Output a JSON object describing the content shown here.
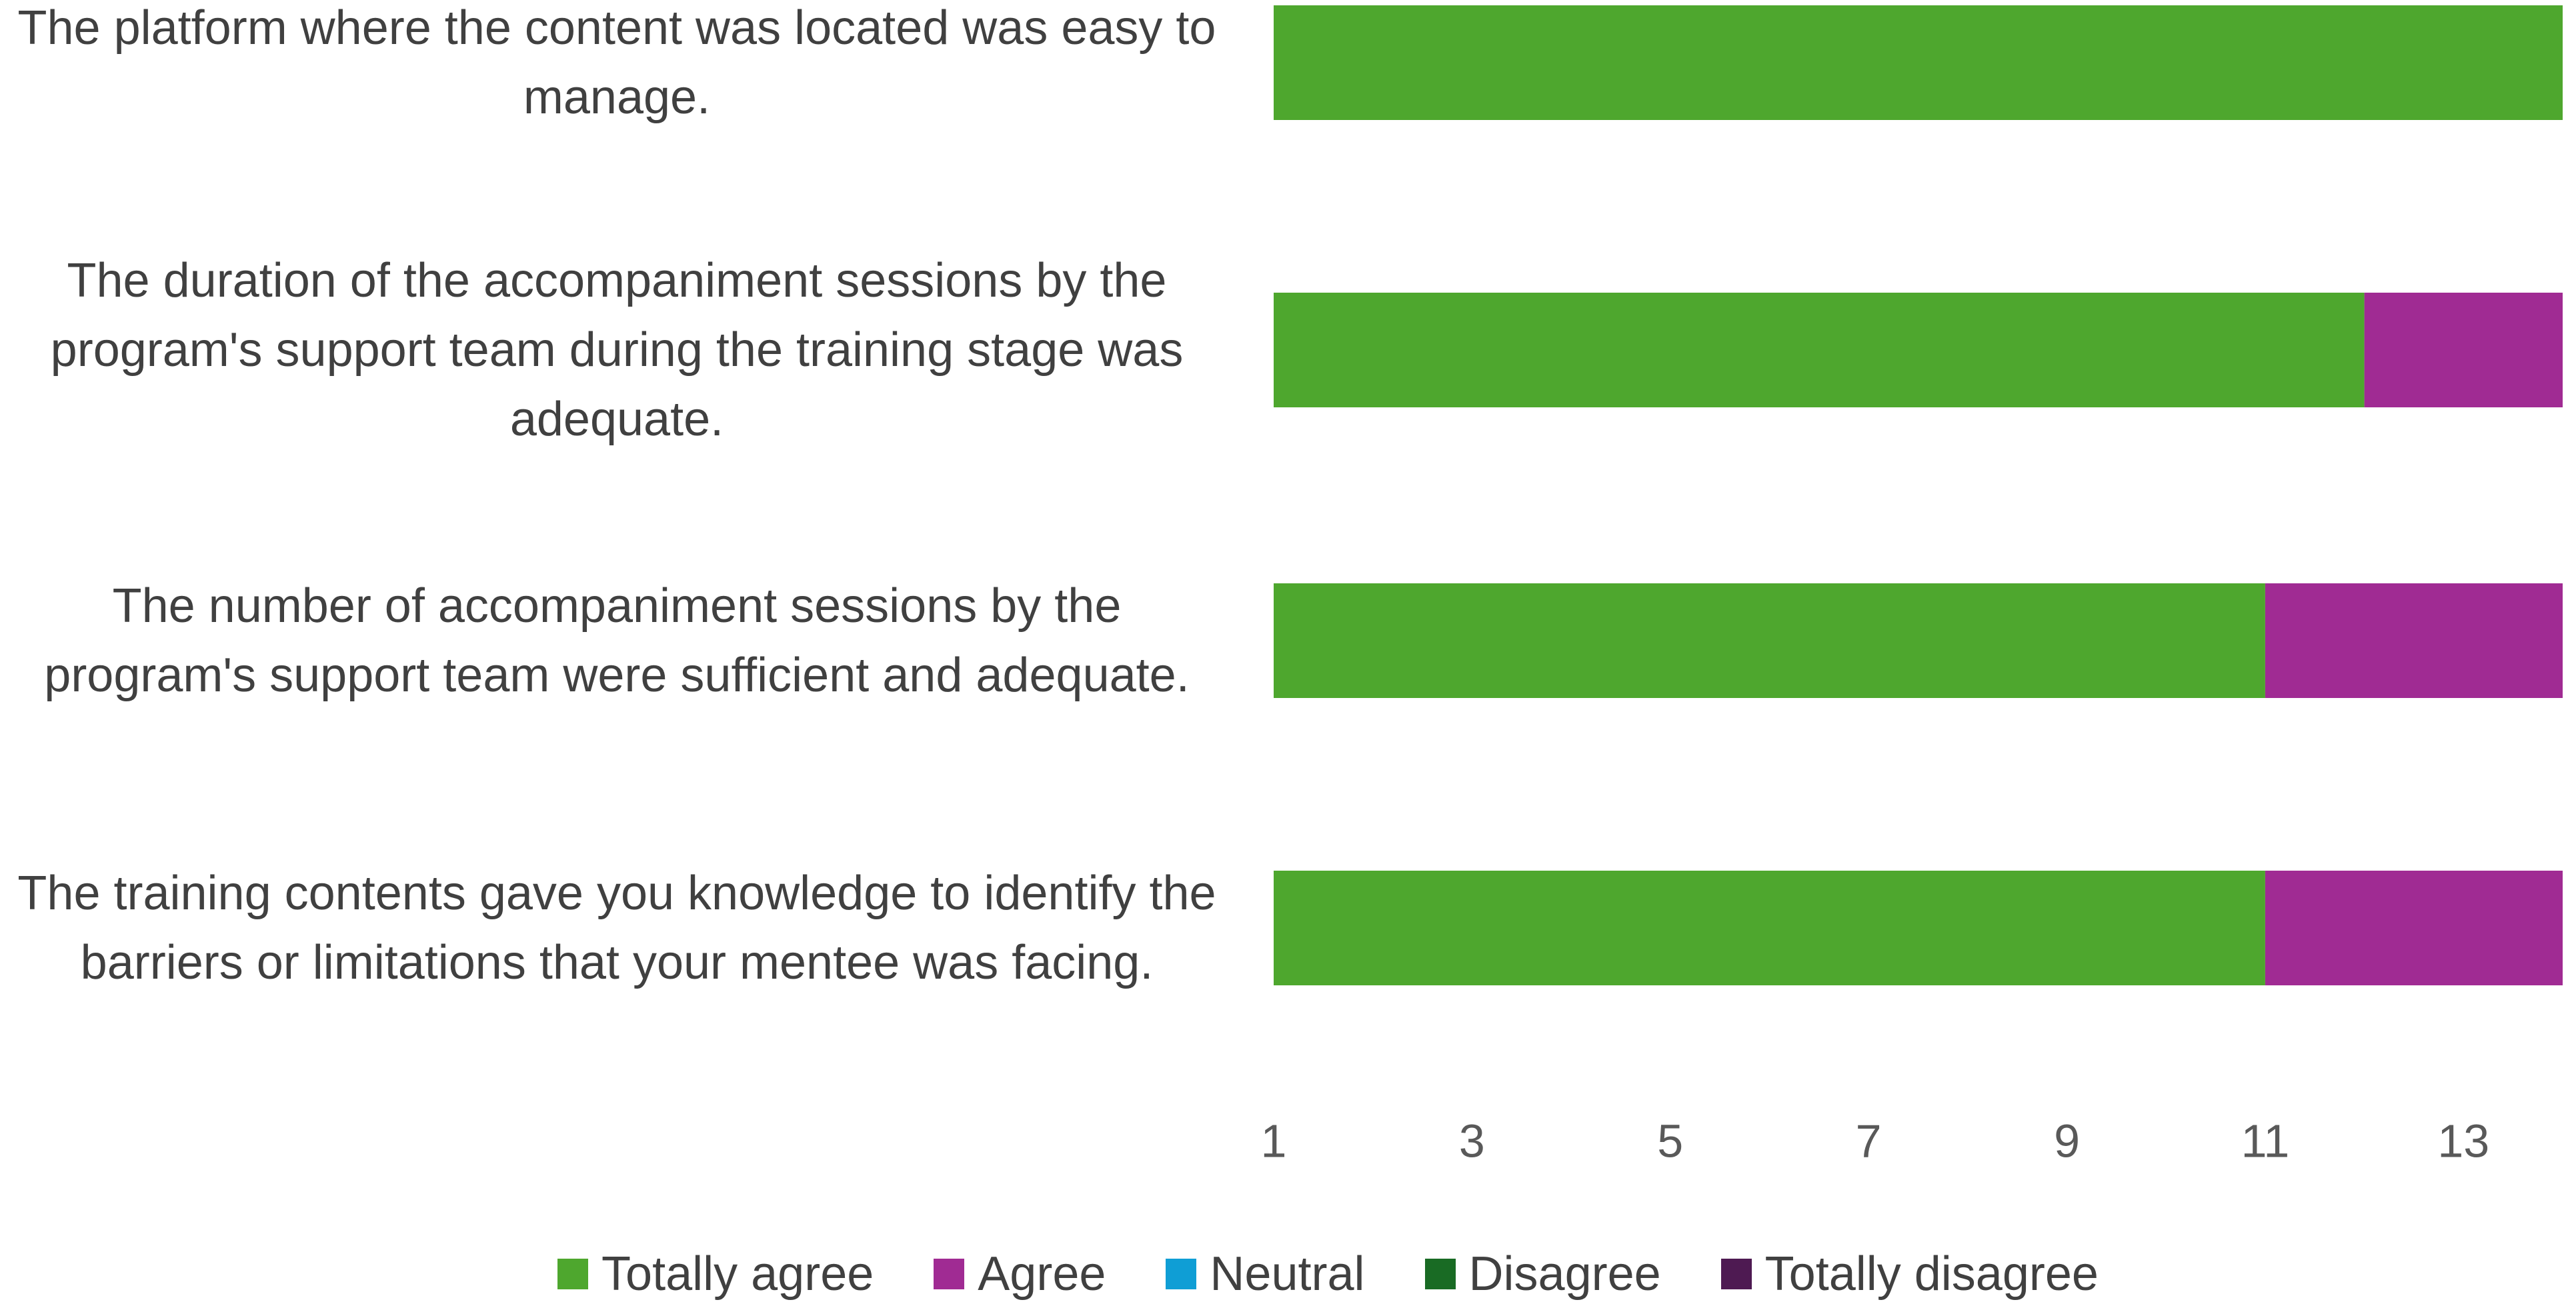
{
  "chart_data": {
    "type": "stacked_bar_horizontal",
    "categories": [
      "The platform where the content was located was easy to manage.",
      "The duration of the accompaniment sessions by the program's support team during the training stage was adequate.",
      "The number of accompaniment sessions by the program's support team were sufficient and adequate.",
      "The training contents gave you knowledge to identify the barriers or limitations that your mentee was facing."
    ],
    "series": [
      {
        "name": "Totally agree",
        "color": "#4ea72e",
        "values": [
          14,
          12,
          11,
          11
        ]
      },
      {
        "name": "Agree",
        "color": "#a02b93",
        "values": [
          0,
          2,
          3,
          3
        ]
      },
      {
        "name": "Neutral",
        "color": "#0f9ed5",
        "values": [
          0,
          0,
          0,
          0
        ]
      },
      {
        "name": "Disagree",
        "color": "#196b24",
        "values": [
          0,
          0,
          0,
          0
        ]
      },
      {
        "name": "Totally disagree",
        "color": "#4e1a52",
        "values": [
          0,
          0,
          0,
          0
        ]
      }
    ],
    "xlim": [
      1,
      14
    ],
    "xticks": [
      1,
      3,
      5,
      7,
      9,
      11,
      13
    ],
    "legend": "bottom",
    "grid": false
  }
}
